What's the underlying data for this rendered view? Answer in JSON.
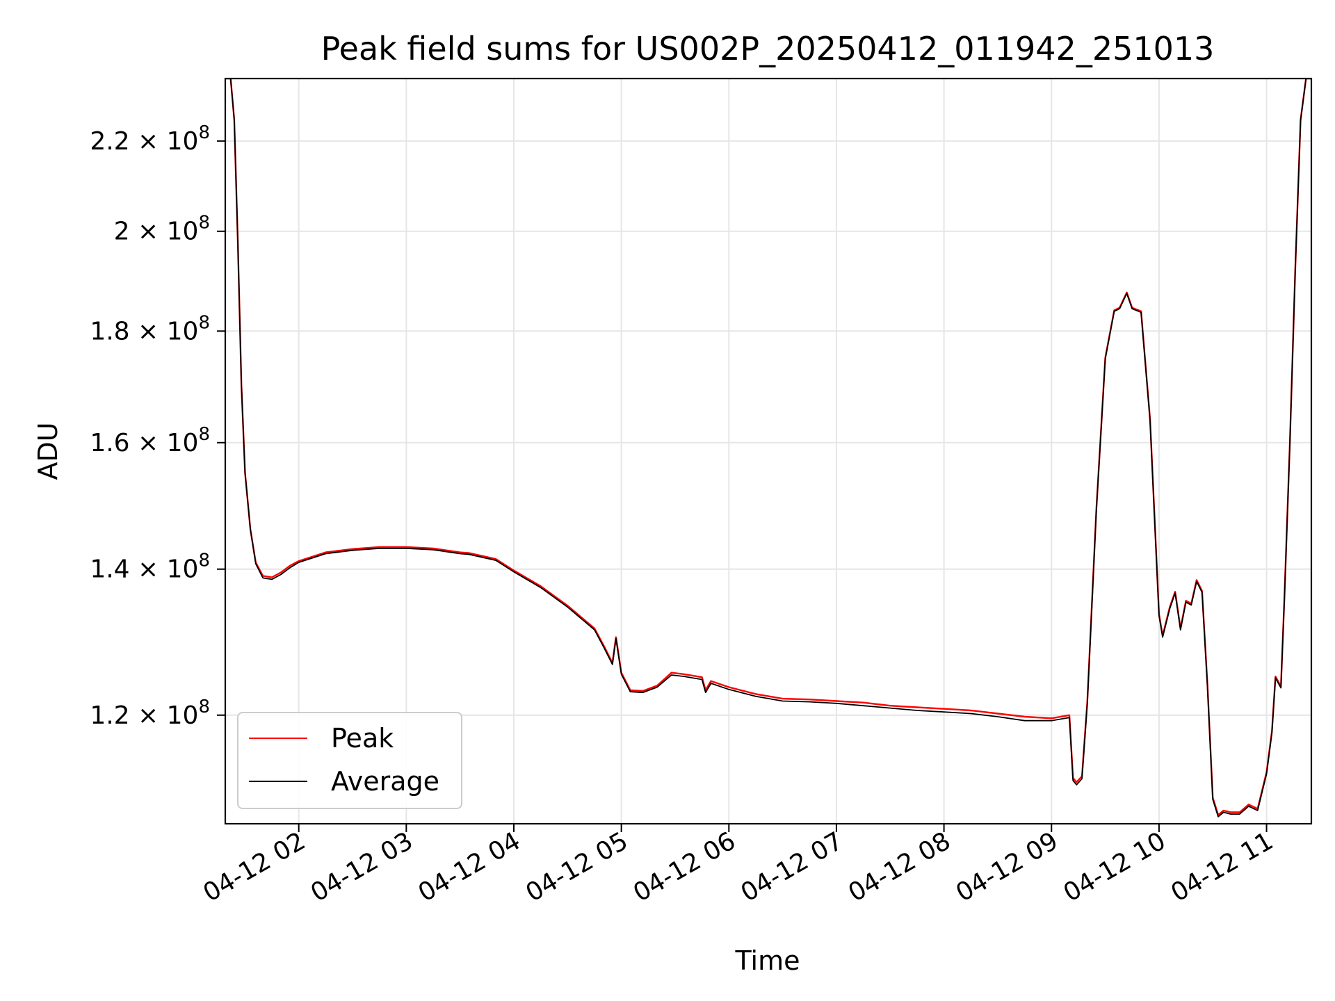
{
  "chart_data": {
    "type": "line",
    "title": "Peak field sums for US002P_20250412_011942_251013",
    "xlabel": "Time",
    "ylabel": "ADU",
    "y_scale": "log",
    "xlim": [
      "2025-04-12 01:19",
      "2025-04-12 11:25"
    ],
    "ylim": [
      107000000,
      235000000
    ],
    "grid": true,
    "legend_position": "lower-left",
    "x_ticks": [
      {
        "value": "2025-04-12 02:00",
        "label": "04-12 02"
      },
      {
        "value": "2025-04-12 03:00",
        "label": "04-12 03"
      },
      {
        "value": "2025-04-12 04:00",
        "label": "04-12 04"
      },
      {
        "value": "2025-04-12 05:00",
        "label": "04-12 05"
      },
      {
        "value": "2025-04-12 06:00",
        "label": "04-12 06"
      },
      {
        "value": "2025-04-12 07:00",
        "label": "04-12 07"
      },
      {
        "value": "2025-04-12 08:00",
        "label": "04-12 08"
      },
      {
        "value": "2025-04-12 09:00",
        "label": "04-12 09"
      },
      {
        "value": "2025-04-12 10:00",
        "label": "04-12 10"
      },
      {
        "value": "2025-04-12 11:00",
        "label": "04-12 11"
      }
    ],
    "y_ticks": [
      {
        "value": 120000000,
        "mantissa": "1.2",
        "base": "10",
        "exponent": "8"
      },
      {
        "value": 140000000,
        "mantissa": "1.4",
        "base": "10",
        "exponent": "8"
      },
      {
        "value": 160000000,
        "mantissa": "1.6",
        "base": "10",
        "exponent": "8"
      },
      {
        "value": 180000000,
        "mantissa": "1.8",
        "base": "10",
        "exponent": "8"
      },
      {
        "value": 200000000,
        "mantissa": "2",
        "base": "10",
        "exponent": "8"
      },
      {
        "value": 220000000,
        "mantissa": "2.2",
        "base": "10",
        "exponent": "8"
      }
    ],
    "series": [
      {
        "name": "Peak",
        "color": "#ff0000",
        "x": [
          "2025-04-12 01:19",
          "2025-04-12 01:22",
          "2025-04-12 01:24",
          "2025-04-12 01:26",
          "2025-04-12 01:28",
          "2025-04-12 01:30",
          "2025-04-12 01:33",
          "2025-04-12 01:36",
          "2025-04-12 01:40",
          "2025-04-12 01:45",
          "2025-04-12 01:50",
          "2025-04-12 01:55",
          "2025-04-12 02:00",
          "2025-04-12 02:15",
          "2025-04-12 02:30",
          "2025-04-12 02:45",
          "2025-04-12 03:00",
          "2025-04-12 03:15",
          "2025-04-12 03:30",
          "2025-04-12 03:35",
          "2025-04-12 03:50",
          "2025-04-12 04:00",
          "2025-04-12 04:15",
          "2025-04-12 04:30",
          "2025-04-12 04:45",
          "2025-04-12 04:50",
          "2025-04-12 04:55",
          "2025-04-12 04:57",
          "2025-04-12 05:00",
          "2025-04-12 05:05",
          "2025-04-12 05:12",
          "2025-04-12 05:20",
          "2025-04-12 05:28",
          "2025-04-12 05:35",
          "2025-04-12 05:45",
          "2025-04-12 05:47",
          "2025-04-12 05:50",
          "2025-04-12 06:00",
          "2025-04-12 06:15",
          "2025-04-12 06:30",
          "2025-04-12 06:45",
          "2025-04-12 07:00",
          "2025-04-12 07:15",
          "2025-04-12 07:30",
          "2025-04-12 07:45",
          "2025-04-12 08:00",
          "2025-04-12 08:15",
          "2025-04-12 08:30",
          "2025-04-12 08:45",
          "2025-04-12 09:00",
          "2025-04-12 09:10",
          "2025-04-12 09:12",
          "2025-04-12 09:14",
          "2025-04-12 09:17",
          "2025-04-12 09:20",
          "2025-04-12 09:25",
          "2025-04-12 09:30",
          "2025-04-12 09:35",
          "2025-04-12 09:38",
          "2025-04-12 09:42",
          "2025-04-12 09:45",
          "2025-04-12 09:50",
          "2025-04-12 09:55",
          "2025-04-12 10:00",
          "2025-04-12 10:02",
          "2025-04-12 10:06",
          "2025-04-12 10:09",
          "2025-04-12 10:12",
          "2025-04-12 10:15",
          "2025-04-12 10:18",
          "2025-04-12 10:21",
          "2025-04-12 10:24",
          "2025-04-12 10:27",
          "2025-04-12 10:30",
          "2025-04-12 10:33",
          "2025-04-12 10:36",
          "2025-04-12 10:40",
          "2025-04-12 10:45",
          "2025-04-12 10:50",
          "2025-04-12 10:55",
          "2025-04-12 11:00",
          "2025-04-12 11:03",
          "2025-04-12 11:05",
          "2025-04-12 11:08",
          "2025-04-12 11:10",
          "2025-04-12 11:13",
          "2025-04-12 11:16",
          "2025-04-12 11:19",
          "2025-04-12 11:22",
          "2025-04-12 11:25"
        ],
        "values": [
          235000000,
          235000000,
          225000000,
          198000000,
          170000000,
          155000000,
          146000000,
          141000000,
          139000000,
          138800000,
          139500000,
          140500000,
          141200000,
          142500000,
          143000000,
          143300000,
          143300000,
          143100000,
          142500000,
          142400000,
          141500000,
          139800000,
          137500000,
          134700000,
          131500000,
          129200000,
          126800000,
          130300000,
          125500000,
          123200000,
          123100000,
          123800000,
          125500000,
          125300000,
          124900000,
          123200000,
          124400000,
          123600000,
          122700000,
          122100000,
          122000000,
          121800000,
          121600000,
          121200000,
          121000000,
          120800000,
          120600000,
          120200000,
          119800000,
          119600000,
          120000000,
          112300000,
          111800000,
          112500000,
          121800000,
          149000000,
          175000000,
          184000000,
          184500000,
          187500000,
          184500000,
          183800000,
          164000000,
          133500000,
          130500000,
          134500000,
          136700000,
          131500000,
          135400000,
          135000000,
          138400000,
          136800000,
          124000000,
          110000000,
          108000000,
          108500000,
          108300000,
          108300000,
          109200000,
          108700000,
          113000000,
          118000000,
          125000000,
          123700000,
          136000000,
          160000000,
          192000000,
          225000000,
          235000000,
          235000000
        ]
      },
      {
        "name": "Average",
        "color": "#000000",
        "x": [
          "2025-04-12 01:19",
          "2025-04-12 01:22",
          "2025-04-12 01:24",
          "2025-04-12 01:26",
          "2025-04-12 01:28",
          "2025-04-12 01:30",
          "2025-04-12 01:33",
          "2025-04-12 01:36",
          "2025-04-12 01:40",
          "2025-04-12 01:45",
          "2025-04-12 01:50",
          "2025-04-12 01:55",
          "2025-04-12 02:00",
          "2025-04-12 02:15",
          "2025-04-12 02:30",
          "2025-04-12 02:45",
          "2025-04-12 03:00",
          "2025-04-12 03:15",
          "2025-04-12 03:30",
          "2025-04-12 03:35",
          "2025-04-12 03:50",
          "2025-04-12 04:00",
          "2025-04-12 04:15",
          "2025-04-12 04:30",
          "2025-04-12 04:45",
          "2025-04-12 04:50",
          "2025-04-12 04:55",
          "2025-04-12 04:57",
          "2025-04-12 05:00",
          "2025-04-12 05:05",
          "2025-04-12 05:12",
          "2025-04-12 05:20",
          "2025-04-12 05:28",
          "2025-04-12 05:35",
          "2025-04-12 05:45",
          "2025-04-12 05:47",
          "2025-04-12 05:50",
          "2025-04-12 06:00",
          "2025-04-12 06:15",
          "2025-04-12 06:30",
          "2025-04-12 06:45",
          "2025-04-12 07:00",
          "2025-04-12 07:15",
          "2025-04-12 07:30",
          "2025-04-12 07:45",
          "2025-04-12 08:00",
          "2025-04-12 08:15",
          "2025-04-12 08:30",
          "2025-04-12 08:45",
          "2025-04-12 09:00",
          "2025-04-12 09:10",
          "2025-04-12 09:12",
          "2025-04-12 09:14",
          "2025-04-12 09:17",
          "2025-04-12 09:20",
          "2025-04-12 09:25",
          "2025-04-12 09:30",
          "2025-04-12 09:35",
          "2025-04-12 09:38",
          "2025-04-12 09:42",
          "2025-04-12 09:45",
          "2025-04-12 09:50",
          "2025-04-12 09:55",
          "2025-04-12 10:00",
          "2025-04-12 10:02",
          "2025-04-12 10:06",
          "2025-04-12 10:09",
          "2025-04-12 10:12",
          "2025-04-12 10:15",
          "2025-04-12 10:18",
          "2025-04-12 10:21",
          "2025-04-12 10:24",
          "2025-04-12 10:27",
          "2025-04-12 10:30",
          "2025-04-12 10:33",
          "2025-04-12 10:36",
          "2025-04-12 10:40",
          "2025-04-12 10:45",
          "2025-04-12 10:50",
          "2025-04-12 10:55",
          "2025-04-12 11:00",
          "2025-04-12 11:03",
          "2025-04-12 11:05",
          "2025-04-12 11:08",
          "2025-04-12 11:10",
          "2025-04-12 11:13",
          "2025-04-12 11:16",
          "2025-04-12 11:19",
          "2025-04-12 11:22",
          "2025-04-12 11:25"
        ],
        "values": [
          235000000,
          235000000,
          225000000,
          198000000,
          170000000,
          155000000,
          146000000,
          140800000,
          138700000,
          138500000,
          139200000,
          140200000,
          141000000,
          142300000,
          142800000,
          143100000,
          143100000,
          142900000,
          142300000,
          142200000,
          141300000,
          139600000,
          137300000,
          134500000,
          131300000,
          129000000,
          126600000,
          130100000,
          125300000,
          123000000,
          122900000,
          123600000,
          125200000,
          125000000,
          124600000,
          122900000,
          124100000,
          123300000,
          122400000,
          121800000,
          121700000,
          121500000,
          121200000,
          120900000,
          120600000,
          120400000,
          120200000,
          119800000,
          119300000,
          119300000,
          119700000,
          112000000,
          111500000,
          112200000,
          121500000,
          148800000,
          174800000,
          183800000,
          184300000,
          187300000,
          184300000,
          183600000,
          163800000,
          133300000,
          130300000,
          134300000,
          136500000,
          131300000,
          135200000,
          134800000,
          138200000,
          136600000,
          123800000,
          109800000,
          107800000,
          108300000,
          108100000,
          108100000,
          109000000,
          108500000,
          112800000,
          117800000,
          124800000,
          123500000,
          135800000,
          159800000,
          191800000,
          224800000,
          235000000,
          235000000
        ]
      }
    ]
  }
}
